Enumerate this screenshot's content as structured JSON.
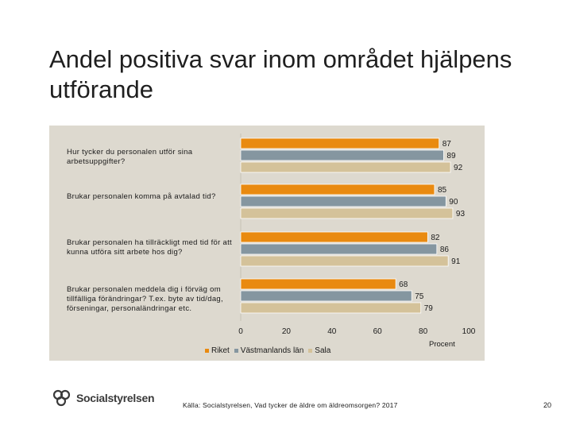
{
  "title": "Andel positiva svar inom området hjälpens utförande",
  "chart_data": {
    "type": "bar",
    "orientation": "horizontal",
    "categories": [
      "Hur tycker du personalen utför sina arbetsuppgifter?",
      "Brukar personalen komma på avtalad tid?",
      "Brukar personalen ha tillräckligt med tid för att kunna utföra sitt arbete hos dig?",
      "Brukar personalen meddela dig i förväg om tillfälliga förändringar? T.ex. byte av tid/dag, förseningar, personaländringar etc."
    ],
    "series": [
      {
        "name": "Riket",
        "values": [
          87,
          85,
          82,
          68
        ],
        "color": "#e98a10"
      },
      {
        "name": "Västmanlands län",
        "values": [
          89,
          90,
          86,
          75
        ],
        "color": "#8596a0"
      },
      {
        "name": "Sala",
        "values": [
          92,
          93,
          91,
          79
        ],
        "color": "#d4c29a"
      }
    ],
    "xticks": [
      "0",
      "20",
      "40",
      "60",
      "80",
      "100"
    ],
    "xlim": [
      0,
      100
    ],
    "xlabel": "Procent",
    "legend_position": "bottom"
  },
  "footer": {
    "source": "Källa: Socialstyrelsen, Vad tycker de äldre om äldreomsorgen? 2017",
    "page": "20",
    "logo_text": "Socialstyrelsen"
  }
}
